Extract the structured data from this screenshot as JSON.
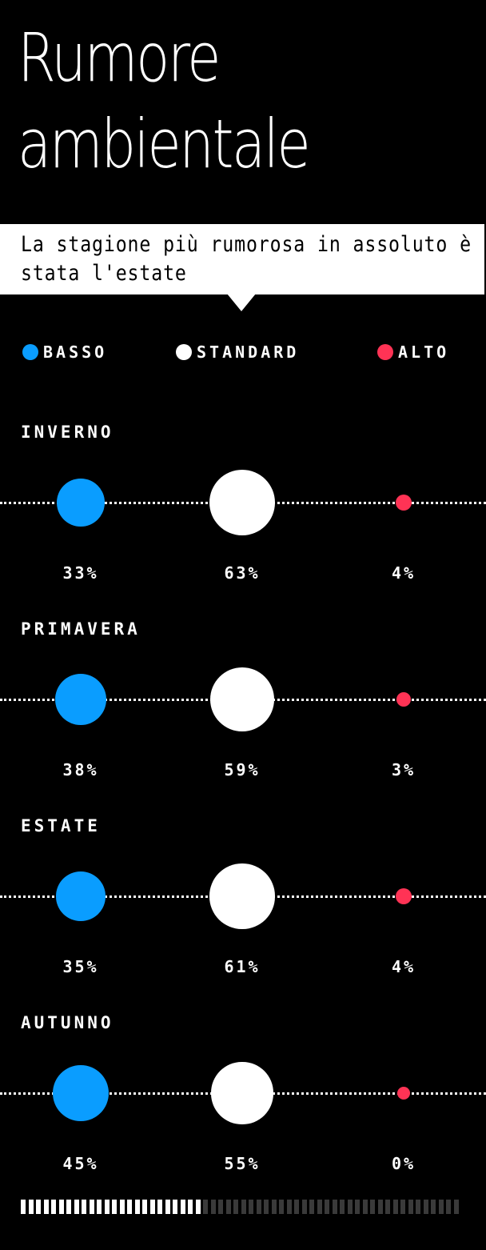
{
  "title": "Rumore ambientale",
  "subtitle": "La stagione più rumorosa in assoluto è stata l'estate",
  "legend": [
    {
      "label": "BASSO",
      "color": "#0a9dff"
    },
    {
      "label": "STANDARD",
      "color": "#ffffff"
    },
    {
      "label": "ALTO",
      "color": "#ff3355"
    }
  ],
  "chart_data": {
    "type": "bubble",
    "title": "Rumore ambientale",
    "subtitle": "La stagione più rumorosa in assoluto è stata l'estate",
    "categories": [
      "BASSO",
      "STANDARD",
      "ALTO"
    ],
    "series": [
      {
        "name": "INVERNO",
        "values": [
          33,
          63,
          4
        ],
        "labels": [
          "33%",
          "63%",
          "4%"
        ]
      },
      {
        "name": "PRIMAVERA",
        "values": [
          38,
          59,
          3
        ],
        "labels": [
          "38%",
          "59%",
          "3%"
        ]
      },
      {
        "name": "ESTATE",
        "values": [
          35,
          61,
          4
        ],
        "labels": [
          "35%",
          "61%",
          "4%"
        ]
      },
      {
        "name": "AUTUNNO",
        "values": [
          45,
          55,
          0
        ],
        "labels": [
          "45%",
          "55%",
          "0%"
        ]
      }
    ],
    "colors": {
      "BASSO": "#0a9dff",
      "STANDARD": "#ffffff",
      "ALTO": "#ff3355"
    }
  },
  "progress": {
    "total_ticks": 58,
    "filled_ticks": 24,
    "fill_fraction": 0.41
  }
}
